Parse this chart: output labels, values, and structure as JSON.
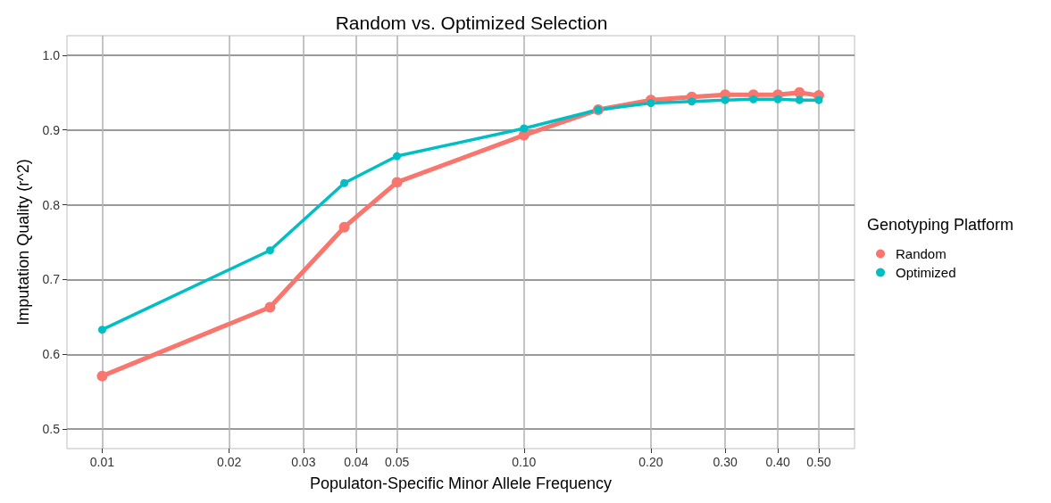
{
  "chart_data": {
    "type": "line",
    "title": "Random vs. Optimized Selection",
    "xlabel": "Populaton-Specific Minor Allele Frequency",
    "ylabel": "Imputation Quality (r^2)",
    "legend_title": "Genotyping Platform",
    "legend": "right",
    "grid": true,
    "marker": "circle",
    "line_style": "solid",
    "log": "x",
    "x": [
      0.01,
      0.025,
      0.0375,
      0.05,
      0.1,
      0.15,
      0.2,
      0.25,
      0.3,
      0.35,
      0.4,
      0.45,
      0.5
    ],
    "series": [
      {
        "name": "Random",
        "color": "#f8766d",
        "values": [
          0.571,
          0.663,
          0.77,
          0.83,
          0.893,
          0.927,
          0.94,
          0.944,
          0.947,
          0.947,
          0.947,
          0.95,
          0.946
        ]
      },
      {
        "name": "Optimized",
        "color": "#00bfc4",
        "values": [
          0.633,
          0.739,
          0.829,
          0.865,
          0.902,
          0.927,
          0.936,
          0.938,
          0.94,
          0.941,
          0.941,
          0.94,
          0.94
        ]
      }
    ],
    "xlim": [
      0.00825,
      0.608
    ],
    "xticks": [
      {
        "value": 0.01,
        "label": "0.01"
      },
      {
        "value": 0.02,
        "label": "0.02"
      },
      {
        "value": 0.03,
        "label": "0.03"
      },
      {
        "value": 0.04,
        "label": "0.04"
      },
      {
        "value": 0.05,
        "label": "0.05"
      },
      {
        "value": 0.1,
        "label": "0.10"
      },
      {
        "value": 0.2,
        "label": "0.20"
      },
      {
        "value": 0.3,
        "label": "0.30"
      },
      {
        "value": 0.4,
        "label": "0.40"
      },
      {
        "value": 0.5,
        "label": "0.50"
      }
    ],
    "ylim": [
      0.474,
      1.026
    ],
    "yticks": [
      {
        "value": 0.5,
        "label": "0.5"
      },
      {
        "value": 0.6,
        "label": "0.6"
      },
      {
        "value": 0.7,
        "label": "0.7"
      },
      {
        "value": 0.8,
        "label": "0.8"
      },
      {
        "value": 0.9,
        "label": "0.9"
      },
      {
        "value": 1.0,
        "label": "1.0"
      }
    ]
  }
}
